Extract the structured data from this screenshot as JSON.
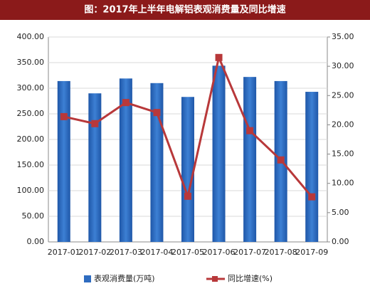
{
  "chart_data": {
    "type": "bar-line",
    "title": "图：2017年上半年电解铝表观消费量及同比增速",
    "categories": [
      "2017-01",
      "2017-02",
      "2017-03",
      "2017-04",
      "2017-05",
      "2017-06",
      "2017-07",
      "2017-08",
      "2017-09"
    ],
    "series": [
      {
        "name": "表观消费量(万吨)",
        "color": "#2f6cc0",
        "type": "bar",
        "values": [
          314,
          290,
          319,
          310,
          283,
          344,
          322,
          314,
          293
        ]
      },
      {
        "name": "同比增速(%)",
        "color": "#b8383a",
        "type": "line",
        "axis": "y2",
        "values": [
          21.4,
          20.2,
          23.8,
          22.1,
          7.8,
          31.5,
          19.0,
          14.0,
          7.7
        ]
      }
    ],
    "ylim": [
      0,
      400
    ],
    "yticks": [
      {
        "value": 0,
        "label": "0.00"
      },
      {
        "value": 50,
        "label": "50.00"
      },
      {
        "value": 100,
        "label": "100.00"
      },
      {
        "value": 150,
        "label": "150.00"
      },
      {
        "value": 200,
        "label": "200.00"
      },
      {
        "value": 250,
        "label": "250.00"
      },
      {
        "value": 300,
        "label": "300.00"
      },
      {
        "value": 350,
        "label": "350.00"
      },
      {
        "value": 400,
        "label": "400.00"
      }
    ],
    "y2lim": [
      0,
      35
    ],
    "y2ticks": [
      {
        "value": 0,
        "label": "0.00"
      },
      {
        "value": 5,
        "label": "5.00"
      },
      {
        "value": 10,
        "label": "10.00"
      },
      {
        "value": 15,
        "label": "15.00"
      },
      {
        "value": 20,
        "label": "20.00"
      },
      {
        "value": 25,
        "label": "25.00"
      },
      {
        "value": 30,
        "label": "30.00"
      },
      {
        "value": 35,
        "label": "35.00"
      }
    ],
    "grid": true
  }
}
